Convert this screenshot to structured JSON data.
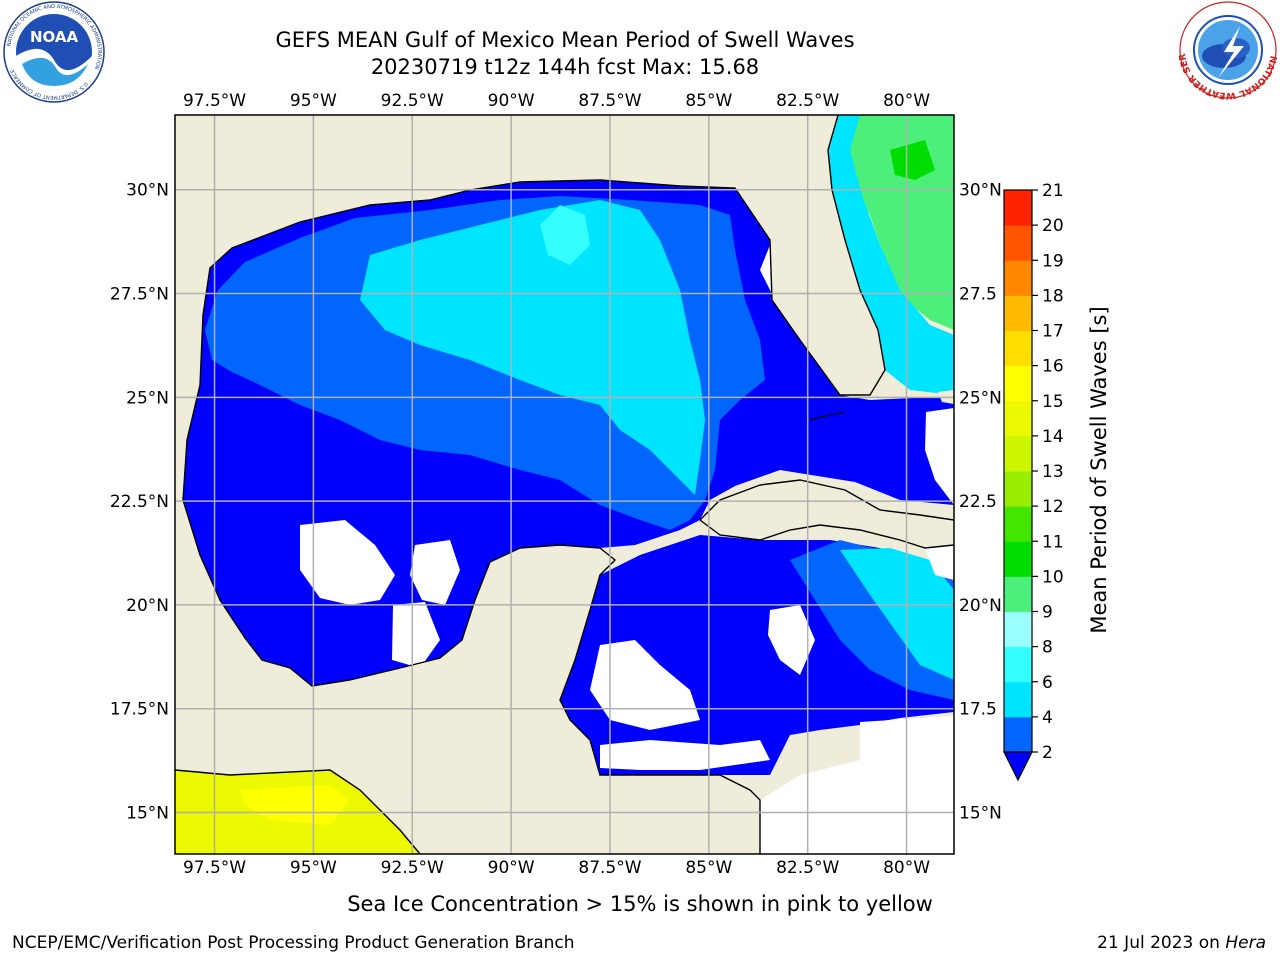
{
  "header": {
    "title": "GEFS MEAN Gulf of Mexico Mean Period of Swell Waves",
    "subtitle": "20230719 t12z 144h fcst   Max: 15.68"
  },
  "logos": {
    "left": {
      "name": "NOAA",
      "ring_text": "NATIONAL OCEANIC AND ATMOSPHERIC ADMINISTRATION",
      "ring_text_bottom": "U.S. DEPARTMENT OF COMMERCE"
    },
    "right": {
      "ring_text": "NATIONAL WEATHER SERVICE"
    }
  },
  "map": {
    "extent": {
      "lon_min": -98.5,
      "lon_max": -78.8,
      "lat_min": 14.0,
      "lat_max": 31.8
    },
    "lon_ticks": [
      {
        "lon": -97.5,
        "label": "97.5°W"
      },
      {
        "lon": -95,
        "label": "95°W"
      },
      {
        "lon": -92.5,
        "label": "92.5°W"
      },
      {
        "lon": -90,
        "label": "90°W"
      },
      {
        "lon": -87.5,
        "label": "87.5°W"
      },
      {
        "lon": -85,
        "label": "85°W"
      },
      {
        "lon": -82.5,
        "label": "82.5°W"
      },
      {
        "lon": -80,
        "label": "80°W"
      }
    ],
    "lat_ticks": [
      {
        "lat": 30,
        "left": "30°N",
        "right": "30°N"
      },
      {
        "lat": 27.5,
        "left": "27.5°N",
        "right": "27.5"
      },
      {
        "lat": 25,
        "left": "25°N",
        "right": "25°N"
      },
      {
        "lat": 22.5,
        "left": "22.5°N",
        "right": "22.5"
      },
      {
        "lat": 20,
        "left": "20°N",
        "right": "20°N"
      },
      {
        "lat": 17.5,
        "left": "17.5°N",
        "right": "17.5"
      },
      {
        "lat": 15,
        "left": "15°N",
        "right": "15°N"
      }
    ],
    "colors": {
      "land": "#efedda",
      "ocean": "#ffffff",
      "grid": "#b0b0b0"
    }
  },
  "colorbar": {
    "label": "Mean Period of Swell Waves [s]",
    "levels": [
      2,
      4,
      6,
      8,
      9,
      10,
      11,
      12,
      13,
      14,
      15,
      16,
      17,
      18,
      19,
      20,
      21
    ],
    "colors": [
      "#0066ff",
      "#00e5ff",
      "#33ffff",
      "#99ffff",
      "#4cef7a",
      "#00dd00",
      "#44e600",
      "#99ee00",
      "#ccf500",
      "#ecfa00",
      "#ffff00",
      "#ffdd00",
      "#ffbb00",
      "#ff8800",
      "#ff5500",
      "#ff2200"
    ],
    "under_color": "#0000ff"
  },
  "footer": {
    "note": "Sea Ice Concentration > 15% is shown in pink to yellow",
    "credit": "NCEP/EMC/Verification Post Processing Product Generation Branch",
    "date": "21 Jul 2023 on ",
    "machine": "Hera"
  }
}
